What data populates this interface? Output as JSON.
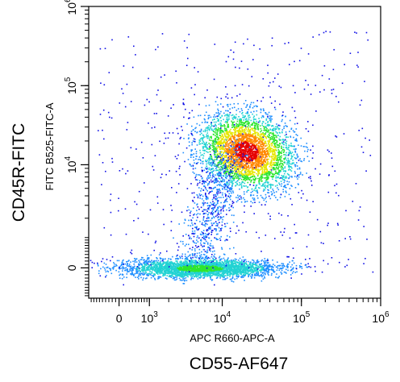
{
  "chart_data": {
    "type": "scatter",
    "subtype": "flow-cytometry density dot plot",
    "title": "",
    "xlabel": "APC R660-APC-A",
    "ylabel": "FITC B525-FITC-A",
    "outer_xlabel": "CD55-AF647",
    "outer_ylabel": "CD45R-FITC",
    "x_scale": "biexponential",
    "y_scale": "biexponential",
    "x_ticks": [
      {
        "value": 0,
        "label": "0"
      },
      {
        "value": 1000,
        "label": "10",
        "exp": "3"
      },
      {
        "value": 10000,
        "label": "10",
        "exp": "4"
      },
      {
        "value": 100000,
        "label": "10",
        "exp": "5"
      },
      {
        "value": 1000000,
        "label": "10",
        "exp": "6"
      }
    ],
    "y_ticks": [
      {
        "value": 0,
        "label": "0"
      },
      {
        "value": 10000,
        "label": "10",
        "exp": "4"
      },
      {
        "value": 100000,
        "label": "10",
        "exp": "5"
      },
      {
        "value": 1000000,
        "label": "10",
        "exp": "6"
      }
    ],
    "xlim": [
      -1000,
      1000000
    ],
    "ylim": [
      -1000,
      1000000
    ],
    "grid": false,
    "legend": "none",
    "colormap": [
      "#1010e6",
      "#1f8fff",
      "#22d3d3",
      "#2ee62e",
      "#e6e600",
      "#ff8800",
      "#e60000"
    ],
    "populations": [
      {
        "name": "",
        "x_center": 3500,
        "y_center": 0,
        "x_range": [
          300,
          40000
        ],
        "y_range": [
          -300,
          300
        ],
        "peak_density": "medium"
      },
      {
        "name": "",
        "x_center": 20000,
        "y_center": 15000,
        "x_range": [
          5000,
          80000
        ],
        "y_range": [
          4000,
          40000
        ],
        "peak_density": "high"
      }
    ]
  }
}
